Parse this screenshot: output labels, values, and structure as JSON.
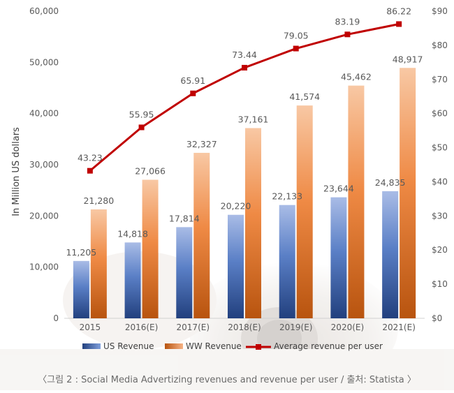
{
  "chart_data": {
    "type": "bar",
    "categories": [
      "2015",
      "2016(E)",
      "2017(E)",
      "2018(E)",
      "2019(E)",
      "2020(E)",
      "2021(E)"
    ],
    "series": [
      {
        "name": "US Revenue",
        "kind": "bar",
        "axis": "left",
        "color": "#4a6fb8",
        "values": [
          11205,
          14818,
          17814,
          20220,
          22133,
          23644,
          24835
        ],
        "labels": [
          "11,205",
          "14,818",
          "17,814",
          "20,220",
          "22,133",
          "23,644",
          "24,835"
        ]
      },
      {
        "name": "WW Revenue",
        "kind": "bar",
        "axis": "left",
        "color": "#ed7d31",
        "values": [
          21280,
          27066,
          32327,
          37161,
          41574,
          45462,
          48917
        ],
        "labels": [
          "21,280",
          "27,066",
          "32,327",
          "37,161",
          "41,574",
          "45,462",
          "48,917"
        ]
      },
      {
        "name": "Average revenue per user",
        "kind": "line",
        "axis": "right",
        "color": "#c00000",
        "values": [
          43.23,
          55.95,
          65.91,
          73.44,
          79.05,
          83.19,
          86.22
        ],
        "labels": [
          "43.23",
          "55.95",
          "65.91",
          "73.44",
          "79.05",
          "83.19",
          "86.22"
        ]
      }
    ],
    "ylabel": "In Million US dollars",
    "ylim": [
      0,
      60000
    ],
    "y_ticks": [
      "0",
      "10,000",
      "20,000",
      "30,000",
      "40,000",
      "50,000",
      "60,000"
    ],
    "y2lim": [
      0,
      90
    ],
    "y2_ticks": [
      "$0",
      "$10",
      "$20",
      "$30",
      "$40",
      "$50",
      "$60",
      "$70",
      "$80",
      "$90"
    ],
    "legend_position": "bottom",
    "grid": false
  },
  "caption": "〈그림 2 : Social Media Advertizing revenues and revenue per user / 출처: Statista 〉"
}
